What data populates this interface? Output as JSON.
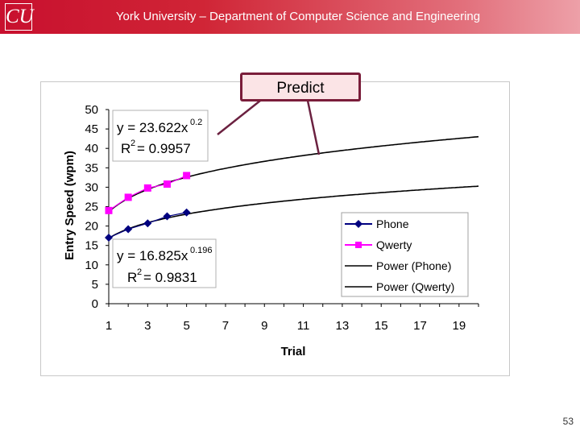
{
  "header": {
    "title": "York University – Department of Computer Science and Engineering",
    "logo_text": "CU"
  },
  "slide_number": "53",
  "callout": {
    "label": "Predict"
  },
  "colors": {
    "banner": "#c8102e",
    "phone": "#000080",
    "qwerty": "#ff00ff",
    "power": "#000000",
    "callout_fill": "#fbe4e6",
    "callout_border": "#7a1d3a"
  },
  "chart_data": {
    "type": "scatter",
    "xlabel": "Trial",
    "ylabel": "Entry Speed (wpm)",
    "xlim": [
      1,
      20
    ],
    "ylim": [
      0,
      50
    ],
    "x_ticks": [
      1,
      3,
      5,
      7,
      9,
      11,
      13,
      15,
      17,
      19
    ],
    "y_ticks": [
      0,
      5,
      10,
      15,
      20,
      25,
      30,
      35,
      40,
      45,
      50
    ],
    "grid": false,
    "legend_position": "right",
    "series": [
      {
        "name": "Phone",
        "kind": "points",
        "marker": "diamond",
        "color": "#000080",
        "x": [
          1,
          2,
          3,
          4,
          5
        ],
        "y": [
          17.0,
          19.2,
          20.7,
          22.5,
          23.5
        ]
      },
      {
        "name": "Qwerty",
        "kind": "points",
        "marker": "square",
        "color": "#ff00ff",
        "x": [
          1,
          2,
          3,
          4,
          5
        ],
        "y": [
          24.0,
          27.4,
          29.8,
          30.8,
          33.0
        ]
      },
      {
        "name": "Power (Phone)",
        "kind": "power",
        "color": "#000000",
        "a": 16.825,
        "b": 0.196
      },
      {
        "name": "Power (Qwerty)",
        "kind": "power",
        "color": "#000000",
        "a": 23.622,
        "b": 0.2
      }
    ],
    "annotations": {
      "qwerty_eq": "y = 23.622x",
      "qwerty_exp": "0.2",
      "qwerty_r2_label": "R",
      "qwerty_r2_value": " = 0.9957",
      "phone_eq": "y = 16.825x",
      "phone_exp": "0.196",
      "phone_r2_label": "R",
      "phone_r2_value": " = 0.9831",
      "r2_sup": "2"
    }
  }
}
